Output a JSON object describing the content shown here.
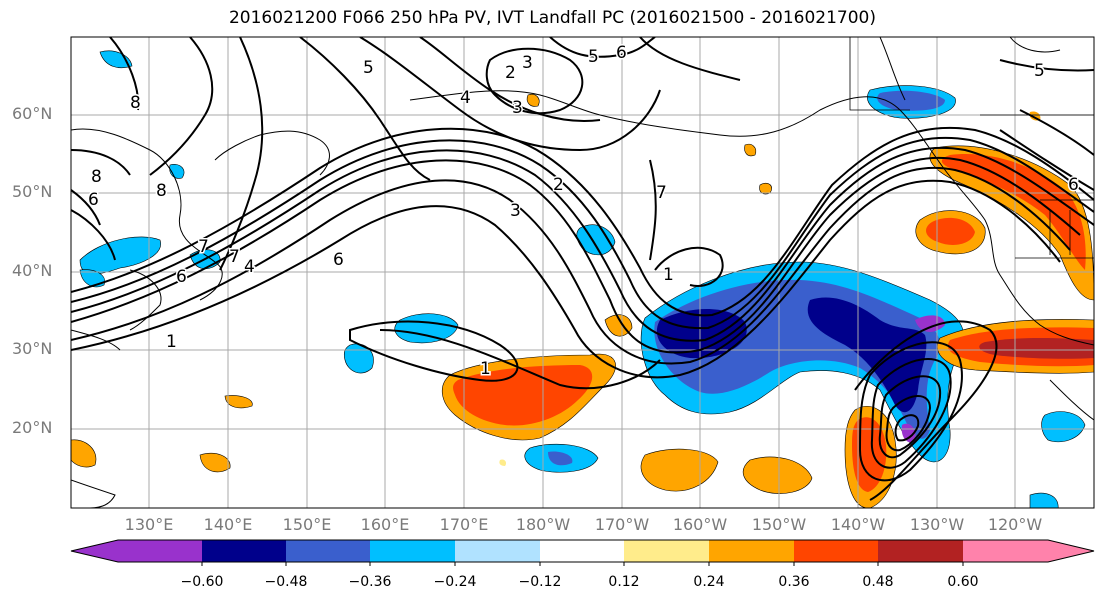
{
  "title": "2016021200 F066 250 hPa PV, IVT Landfall PC (2016021500 - 2016021700)",
  "lat_labels": [
    "60°N",
    "50°N",
    "40°N",
    "30°N",
    "20°N"
  ],
  "lon_labels": [
    "130°E",
    "140°E",
    "150°E",
    "160°E",
    "170°E",
    "180°W",
    "170°W",
    "160°W",
    "150°W",
    "140°W",
    "130°W",
    "120°W"
  ],
  "contour_labels": [
    "5",
    "8",
    "2",
    "3",
    "4",
    "6",
    "5",
    "5",
    "6",
    "8",
    "6",
    "7",
    "7",
    "4",
    "6",
    "1",
    "1",
    "3",
    "2",
    "7",
    "1",
    "8",
    "3",
    "6"
  ],
  "colorbar": {
    "ticks": [
      "−0.60",
      "−0.48",
      "−0.36",
      "−0.24",
      "−0.12",
      "0.12",
      "0.24",
      "0.36",
      "0.48",
      "0.60"
    ],
    "colors": [
      "#9932cc",
      "#00008b",
      "#3a5fcd",
      "#00bfff",
      "#b0e2ff",
      "#ffffff",
      "#ffec8b",
      "#ffa500",
      "#ff4500",
      "#b22222",
      "#ff82ab"
    ]
  }
}
